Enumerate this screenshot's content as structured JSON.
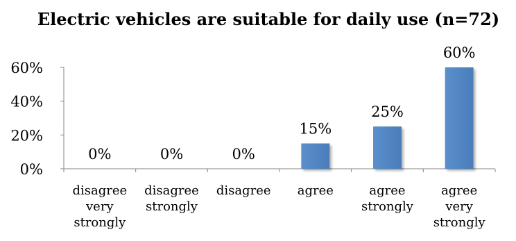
{
  "chart_data": {
    "type": "bar",
    "title": "Electric vehicles are suitable for daily use (n=72)",
    "xlabel": "",
    "ylabel": "",
    "categories": [
      [
        "disagree",
        "very",
        "strongly"
      ],
      [
        "disagree",
        "strongly"
      ],
      [
        "disagree"
      ],
      [
        "agree"
      ],
      [
        "agree",
        "strongly"
      ],
      [
        "agree",
        "very",
        "strongly"
      ]
    ],
    "values": [
      0,
      0,
      0,
      15,
      25,
      60
    ],
    "data_labels": [
      "0%",
      "0%",
      "0%",
      "15%",
      "25%",
      "60%"
    ],
    "ylim": [
      0,
      60
    ],
    "yticks": [
      0,
      20,
      40,
      60
    ],
    "ytick_labels": [
      "0%",
      "20%",
      "40%",
      "60%"
    ],
    "grid": false,
    "legend": "none",
    "bar_color": "#4F81BD",
    "axis_color": "#868686"
  }
}
